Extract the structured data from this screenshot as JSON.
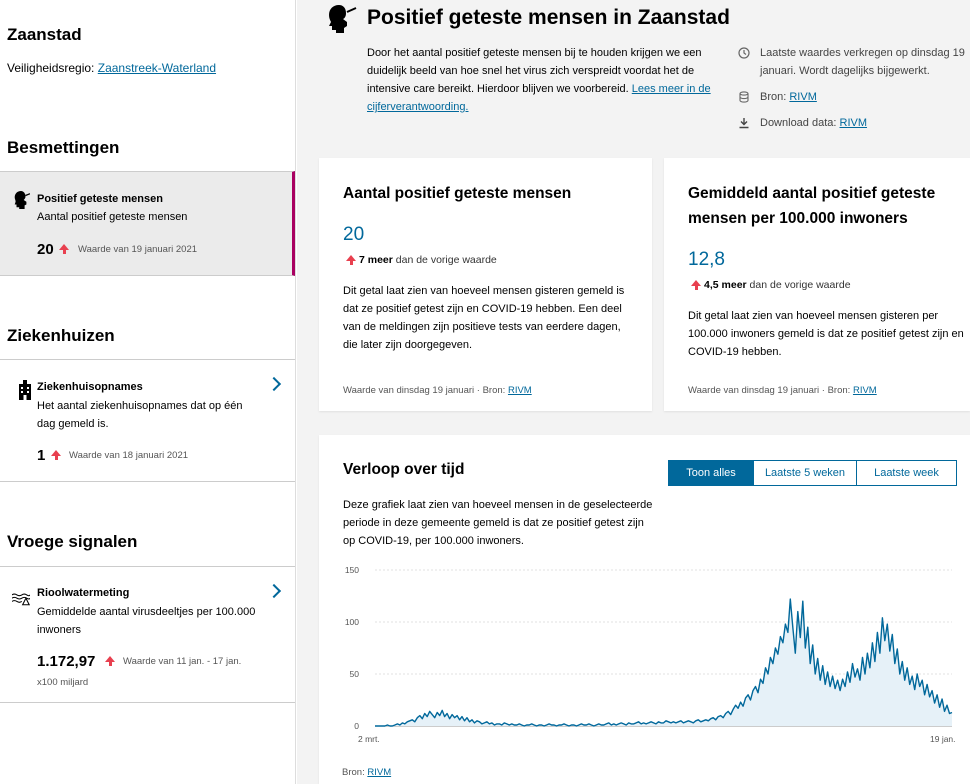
{
  "sidebar": {
    "municipality": "Zaanstad",
    "region_label": "Veiligheidsregio:",
    "region_link": "Zaanstreek-Waterland",
    "sections": [
      {
        "title": "Besmettingen",
        "item": {
          "title": "Positief geteste mensen",
          "desc": "Aantal positief geteste mensen",
          "value": "20",
          "date": "Waarde van 19 januari 2021",
          "icon": "person-testing-icon"
        }
      },
      {
        "title": "Ziekenhuizen",
        "item": {
          "title": "Ziekenhuisopnames",
          "desc": "Het aantal ziekenhuisopnames dat op één dag gemeld is.",
          "value": "1",
          "date": "Waarde van 18 januari 2021",
          "icon": "hospital-icon"
        }
      },
      {
        "title": "Vroege signalen",
        "item": {
          "title": "Rioolwatermeting",
          "desc": "Gemiddelde aantal virusdeeltjes per 100.000 inwoners",
          "value": "1.172,97",
          "date": "Waarde van 11 jan. - 17 jan.",
          "unit": "x100 miljard",
          "icon": "sewer-icon"
        }
      }
    ]
  },
  "header": {
    "title": "Positief geteste mensen in Zaanstad",
    "intro": "Door het aantal positief geteste mensen bij te houden krijgen we een duidelijk beeld van hoe snel het virus zich verspreidt voordat het de intensive care bereikt. Hierdoor blijven we voorbereid.",
    "intro_link": "Lees meer in de cijferverantwoording.",
    "meta_updated": "Laatste waardes verkregen op dinsdag 19 januari. Wordt dagelijks bijgewerkt.",
    "meta_source_label": "Bron:",
    "meta_source_link": "RIVM",
    "meta_download_label": "Download data:",
    "meta_download_link": "RIVM"
  },
  "cards": [
    {
      "title": "Aantal positief geteste mensen",
      "value": "20",
      "delta_value": "7 meer",
      "delta_text": "dan de vorige waarde",
      "text": "Dit getal laat zien van hoeveel mensen gisteren gemeld is dat ze positief getest zijn en COVID-19 hebben. Een deel van de meldingen zijn positieve tests van eerdere dagen, die later zijn doorgegeven.",
      "foot": "Waarde van dinsdag 19 januari · Bron:",
      "foot_link": "RIVM"
    },
    {
      "title": "Gemiddeld aantal positief geteste mensen per 100.000 inwoners",
      "value": "12,8",
      "delta_value": "4,5 meer",
      "delta_text": "dan de vorige waarde",
      "text": "Dit getal laat zien van hoeveel mensen gisteren per 100.000 inwoners gemeld is dat ze positief getest zijn en COVID-19 hebben.",
      "foot": "Waarde van dinsdag 19 januari · Bron:",
      "foot_link": "RIVM"
    }
  ],
  "timeline": {
    "title": "Verloop over tijd",
    "tabs": [
      "Toon alles",
      "Laatste 5 weken",
      "Laatste week"
    ],
    "active_tab": 0,
    "desc": "Deze grafiek laat zien van hoeveel mensen in de geselecteerde periode in deze gemeente gemeld is dat ze positief getest zijn op COVID-19, per 100.000 inwoners.",
    "source_label": "Bron:",
    "source_link": "RIVM"
  },
  "chart_data": {
    "type": "area",
    "x_start": "2 mrt.",
    "x_end": "19 jan.",
    "yticks": [
      0,
      50,
      100,
      150
    ],
    "ylim": [
      0,
      150
    ],
    "series_color": "#01689b",
    "fill_color": "#e6f1f8",
    "values": [
      0,
      0,
      0,
      0,
      0,
      1,
      0,
      0,
      1,
      2,
      1,
      3,
      2,
      4,
      5,
      6,
      4,
      8,
      10,
      7,
      12,
      9,
      14,
      11,
      8,
      13,
      10,
      15,
      9,
      12,
      7,
      11,
      8,
      10,
      6,
      9,
      5,
      8,
      4,
      6,
      3,
      5,
      4,
      2,
      3,
      4,
      2,
      3,
      1,
      2,
      2,
      1,
      3,
      2,
      1,
      2,
      1,
      1,
      2,
      1,
      0,
      1,
      1,
      2,
      1,
      0,
      1,
      1,
      0,
      1,
      2,
      1,
      1,
      0,
      1,
      1,
      2,
      1,
      0,
      1,
      1,
      0,
      1,
      2,
      1,
      1,
      2,
      1,
      0,
      1,
      2,
      1,
      1,
      2,
      3,
      1,
      2,
      1,
      2,
      3,
      2,
      1,
      3,
      2,
      2,
      3,
      4,
      2,
      3,
      2,
      3,
      4,
      3,
      2,
      4,
      3,
      3,
      5,
      4,
      3,
      4,
      3,
      4,
      5,
      3,
      4,
      5,
      4,
      3,
      5,
      6,
      4,
      5,
      6,
      5,
      7,
      8,
      6,
      9,
      10,
      8,
      12,
      14,
      11,
      16,
      20,
      17,
      23,
      19,
      27,
      30,
      25,
      34,
      38,
      32,
      45,
      41,
      56,
      50,
      66,
      60,
      75,
      69,
      86,
      80,
      98,
      90,
      122,
      95,
      70,
      110,
      85,
      120,
      75,
      95,
      60,
      78,
      50,
      65,
      44,
      58,
      40,
      52,
      38,
      48,
      36,
      44,
      34,
      45,
      38,
      52,
      42,
      60,
      47,
      55,
      44,
      66,
      50,
      70,
      56,
      80,
      62,
      90,
      70,
      104,
      82,
      98,
      72,
      88,
      60,
      74,
      50,
      62,
      44,
      56,
      40,
      48,
      35,
      50,
      38,
      44,
      30,
      40,
      28,
      34,
      22,
      30,
      18,
      26,
      14,
      20,
      12,
      13
    ]
  }
}
